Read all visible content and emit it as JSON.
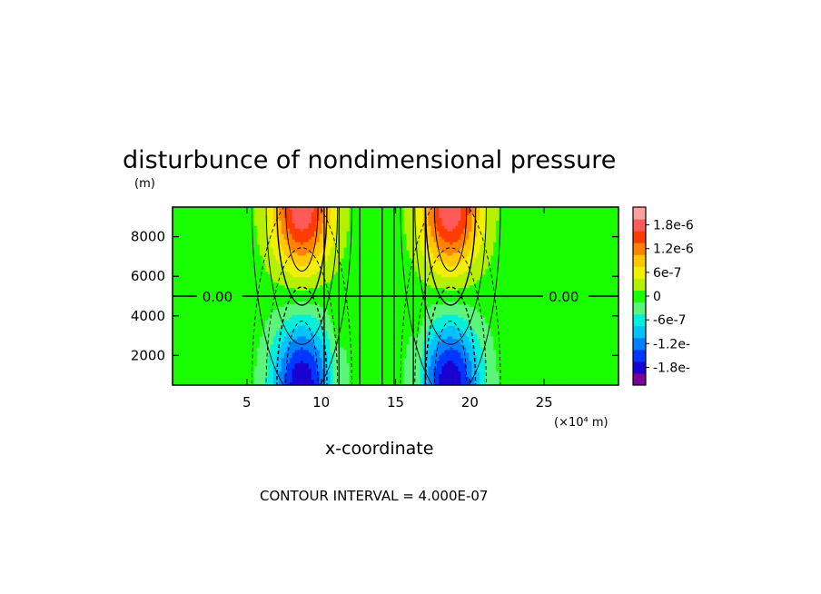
{
  "chart_data": {
    "type": "heatmap",
    "title": "disturbunce of nondimensional pressure",
    "ylabel": "(m)",
    "xlabel": "x-coordinate",
    "x_unit": "(×10⁴ m)",
    "footer": "CONTOUR INTERVAL = 4.000E-07",
    "xlim": [
      0,
      30
    ],
    "ylim": [
      500,
      9500
    ],
    "xticks": [
      5,
      10,
      15,
      20,
      25
    ],
    "yticks": [
      2000,
      4000,
      6000,
      8000
    ],
    "contour_interval": 4e-07,
    "zero_contour_label": "0.00",
    "colorbar": {
      "levels": [
        -2.1e-06,
        -1.8e-06,
        -1.5e-06,
        -1.2e-06,
        -9e-07,
        -6e-07,
        -3e-07,
        0,
        3e-07,
        6e-07,
        9e-07,
        1.2e-06,
        1.5e-06,
        1.8e-06,
        2.1e-06
      ],
      "colors": [
        "#7a0096",
        "#1a00d2",
        "#0037ff",
        "#0082ff",
        "#00c3ff",
        "#00f0dc",
        "#5af57a",
        "#19ff00",
        "#b4f000",
        "#f0f000",
        "#ffc800",
        "#ff8200",
        "#ff3c00",
        "#ff5a5a",
        "#ffa0a0"
      ],
      "tick_labels": [
        "-1.8e-",
        "-1.2e-",
        "-6e-7",
        "0",
        "6e-7",
        "1.2e-6",
        "1.8e-6"
      ]
    },
    "features": [
      {
        "type": "lobe",
        "x": 8.7,
        "y_extreme": 9500,
        "value": 1.9e-06
      },
      {
        "type": "lobe",
        "x": 18.7,
        "y_extreme": 9500,
        "value": 1.9e-06
      },
      {
        "type": "lobe",
        "x": 8.7,
        "y_extreme": 500,
        "value": -1.9e-06
      },
      {
        "type": "lobe",
        "x": 18.7,
        "y_extreme": 500,
        "value": -1.9e-06
      }
    ]
  }
}
